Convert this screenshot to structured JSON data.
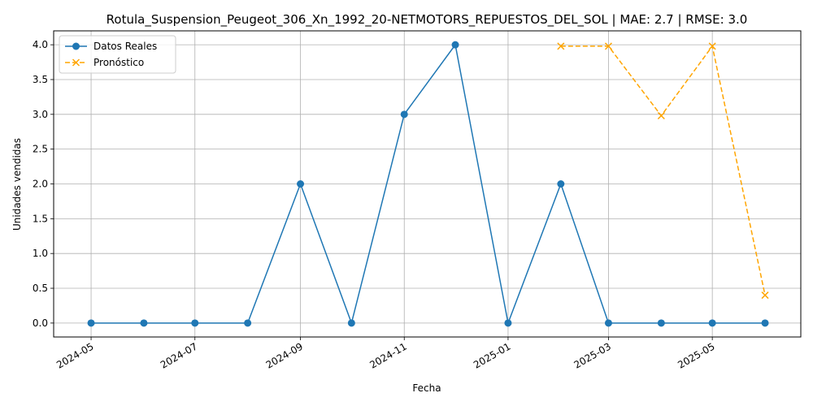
{
  "chart_data": {
    "type": "line",
    "title": "Rotula_Suspension_Peugeot_306_Xn_1992_20-NETMOTORS_REPUESTOS_DEL_SOL | MAE: 2.7 | RMSE: 3.0",
    "xlabel": "Fecha",
    "ylabel": "Unidades vendidas",
    "grid": true,
    "legend_position": "top-left",
    "ylim": [
      -0.2,
      4.2
    ],
    "xlim": [
      "2024-04-09",
      "2025-06-22"
    ],
    "x_ticks": [
      "2024-05",
      "2024-07",
      "2024-09",
      "2024-11",
      "2025-01",
      "2025-03",
      "2025-05"
    ],
    "y_ticks": [
      "0.0",
      "0.5",
      "1.0",
      "1.5",
      "2.0",
      "2.5",
      "3.0",
      "3.5",
      "4.0"
    ],
    "series": [
      {
        "name": "Datos Reales",
        "color": "#1f77b4",
        "marker": "circle",
        "dashed": false,
        "x": [
          "2024-05-01",
          "2024-06-01",
          "2024-07-01",
          "2024-08-01",
          "2024-09-01",
          "2024-10-01",
          "2024-11-01",
          "2024-12-01",
          "2025-01-01",
          "2025-02-01",
          "2025-03-01",
          "2025-04-01",
          "2025-05-01",
          "2025-06-01"
        ],
        "values": [
          0,
          0,
          0,
          0,
          2,
          0,
          3,
          4,
          0,
          2,
          0,
          0,
          0,
          0
        ]
      },
      {
        "name": "Pronóstico",
        "color": "#ffa500",
        "marker": "x",
        "dashed": true,
        "x": [
          "2025-02-01",
          "2025-03-01",
          "2025-04-01",
          "2025-05-01",
          "2025-06-01"
        ],
        "values": [
          3.98,
          3.98,
          2.98,
          3.98,
          0.4
        ]
      }
    ]
  }
}
